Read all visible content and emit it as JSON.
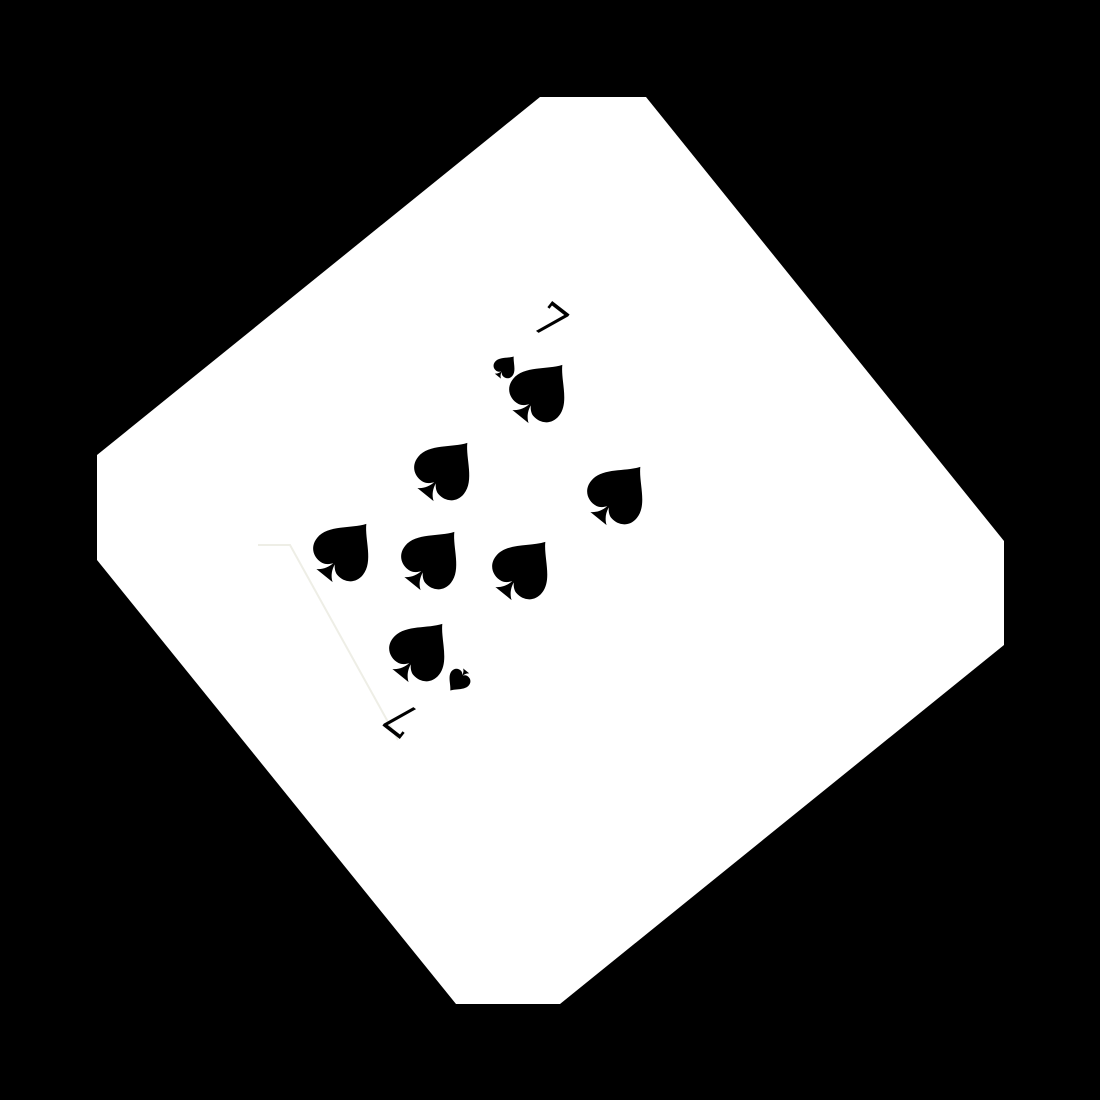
{
  "scene": {
    "background_color": "#000000",
    "card_face_color": "#ffffff",
    "ink_color": "#000000"
  },
  "card": {
    "rank": "7",
    "suit": "spades",
    "corner_rank_top": "7",
    "corner_rank_bottom": "7",
    "pip_count": 7
  }
}
